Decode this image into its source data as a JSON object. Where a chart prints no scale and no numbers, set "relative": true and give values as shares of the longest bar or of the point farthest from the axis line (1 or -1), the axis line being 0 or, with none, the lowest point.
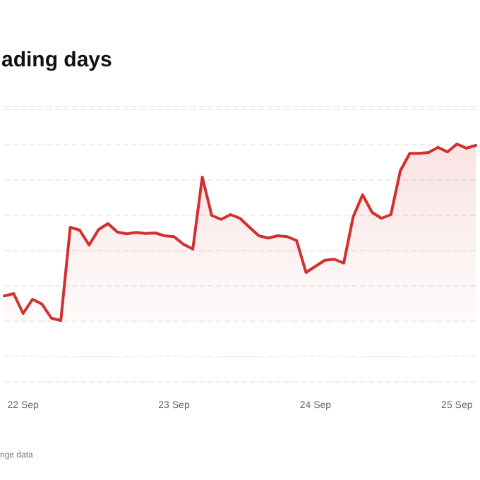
{
  "chart_data": {
    "type": "area",
    "title": "ading days",
    "annotations": [
      "nge data"
    ],
    "relative": true,
    "grid": "y",
    "marker": "none",
    "line_style": "solid",
    "categories": [
      null,
      null,
      "22 Sep",
      null,
      null,
      null,
      null,
      null,
      null,
      null,
      null,
      null,
      null,
      null,
      null,
      null,
      null,
      null,
      "23 Sep",
      null,
      null,
      null,
      null,
      null,
      null,
      null,
      null,
      null,
      null,
      null,
      null,
      null,
      null,
      "24 Sep",
      null,
      null,
      null,
      null,
      null,
      null,
      null,
      null,
      null,
      null,
      null,
      null,
      null,
      null,
      "25 Sep",
      null,
      null
    ],
    "series": [
      {
        "color": "#d32f2f",
        "values": [
          0.139,
          0.152,
          0.04,
          0.12,
          0.093,
          0.013,
          0,
          0.528,
          0.512,
          0.427,
          0.515,
          0.549,
          0.501,
          0.491,
          0.499,
          0.493,
          0.496,
          0.48,
          0.475,
          0.432,
          0.405,
          0.813,
          0.595,
          0.573,
          0.6,
          0.579,
          0.528,
          0.48,
          0.467,
          0.48,
          0.475,
          0.453,
          0.272,
          0.307,
          0.341,
          0.347,
          0.325,
          0.587,
          0.712,
          0.613,
          0.579,
          0.6,
          0.848,
          0.947,
          0.947,
          0.952,
          0.981,
          0.955,
          1,
          0.976,
          0.992
        ]
      }
    ]
  }
}
